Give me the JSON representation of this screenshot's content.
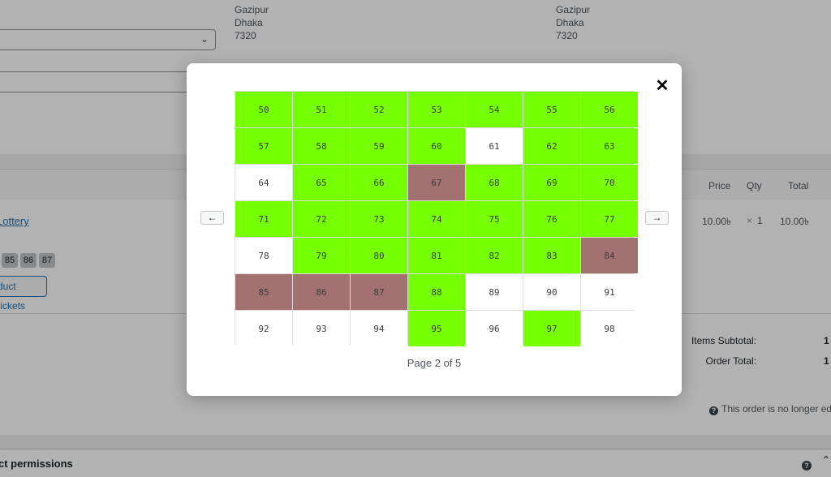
{
  "colors": {
    "available": "#76ff03",
    "sold": "#ffffff",
    "reserved": "#a47171",
    "link": "#2271b1",
    "overlay": "rgba(0,0,0,0.30)"
  },
  "background": {
    "billing_address": [
      "Gazipur",
      "Dhaka",
      "7320"
    ],
    "shipping_address": [
      "Gazipur",
      "Dhaka",
      "7320"
    ],
    "items_header": {
      "price": "Price",
      "qty": "Qty",
      "total": "Total"
    },
    "line_item": {
      "name": "Lottery",
      "tickets": [
        "85",
        "86",
        "87"
      ],
      "button_label": "duct tickets",
      "price": "10.00৳",
      "qty_sign": "×",
      "qty": "1",
      "total": "10.00৳"
    },
    "totals": {
      "items_subtotal_label": "Items Subtotal:",
      "order_total_label": "Order Total:",
      "items_subtotal_value": "1",
      "order_total_value": "1"
    },
    "notice": "This order is no longer edit",
    "permissions_title": "ct permissions",
    "icons": {
      "select": "chevron-down-icon",
      "help": "question-circle-icon",
      "toggle": "chevron-up-icon"
    }
  },
  "modal": {
    "close_label": "✕",
    "prev_label": "←",
    "next_label": "→",
    "page_label": "Page 2 of 5",
    "tickets": [
      {
        "number": "50",
        "status": "available"
      },
      {
        "number": "51",
        "status": "available"
      },
      {
        "number": "52",
        "status": "available"
      },
      {
        "number": "53",
        "status": "available"
      },
      {
        "number": "54",
        "status": "available"
      },
      {
        "number": "55",
        "status": "available"
      },
      {
        "number": "56",
        "status": "available"
      },
      {
        "number": "57",
        "status": "available"
      },
      {
        "number": "58",
        "status": "available"
      },
      {
        "number": "59",
        "status": "available"
      },
      {
        "number": "60",
        "status": "available"
      },
      {
        "number": "61",
        "status": "sold"
      },
      {
        "number": "62",
        "status": "available"
      },
      {
        "number": "63",
        "status": "available"
      },
      {
        "number": "64",
        "status": "sold"
      },
      {
        "number": "65",
        "status": "available"
      },
      {
        "number": "66",
        "status": "available"
      },
      {
        "number": "67",
        "status": "reserved"
      },
      {
        "number": "68",
        "status": "available"
      },
      {
        "number": "69",
        "status": "available"
      },
      {
        "number": "70",
        "status": "available"
      },
      {
        "number": "71",
        "status": "available"
      },
      {
        "number": "72",
        "status": "available"
      },
      {
        "number": "73",
        "status": "available"
      },
      {
        "number": "74",
        "status": "available"
      },
      {
        "number": "75",
        "status": "available"
      },
      {
        "number": "76",
        "status": "available"
      },
      {
        "number": "77",
        "status": "available"
      },
      {
        "number": "78",
        "status": "sold"
      },
      {
        "number": "79",
        "status": "available"
      },
      {
        "number": "80",
        "status": "available"
      },
      {
        "number": "81",
        "status": "available"
      },
      {
        "number": "82",
        "status": "available"
      },
      {
        "number": "83",
        "status": "available"
      },
      {
        "number": "84",
        "status": "reserved"
      },
      {
        "number": "85",
        "status": "reserved"
      },
      {
        "number": "86",
        "status": "reserved"
      },
      {
        "number": "87",
        "status": "reserved"
      },
      {
        "number": "88",
        "status": "available"
      },
      {
        "number": "89",
        "status": "sold"
      },
      {
        "number": "90",
        "status": "sold"
      },
      {
        "number": "91",
        "status": "sold"
      },
      {
        "number": "92",
        "status": "sold"
      },
      {
        "number": "93",
        "status": "sold"
      },
      {
        "number": "94",
        "status": "sold"
      },
      {
        "number": "95",
        "status": "available"
      },
      {
        "number": "96",
        "status": "sold"
      },
      {
        "number": "97",
        "status": "available"
      },
      {
        "number": "98",
        "status": "sold"
      }
    ]
  }
}
